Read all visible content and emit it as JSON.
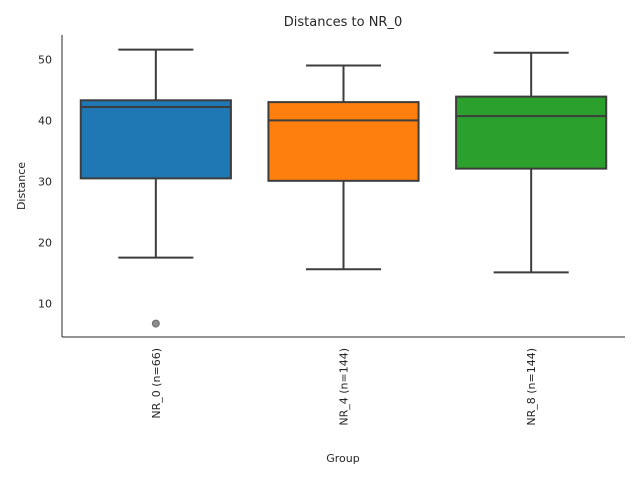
{
  "chart_data": {
    "type": "box",
    "title": "Distances to NR_0",
    "xlabel": "Group",
    "ylabel": "Distance",
    "ylim": [
      4.5,
      54
    ],
    "yticks": [
      10,
      20,
      30,
      40,
      50
    ],
    "grid": false,
    "categories": [
      "NR_0 (n=66)",
      "NR_4 (n=144)",
      "NR_8 (n=144)"
    ],
    "boxes": [
      {
        "name": "NR_0 (n=66)",
        "color": "#1f77b4",
        "whisker_low": 17.5,
        "q1": 30.5,
        "median": 42.2,
        "q3": 43.3,
        "whisker_high": 51.6,
        "outliers": [
          6.7
        ]
      },
      {
        "name": "NR_4 (n=144)",
        "color": "#ff7f0e",
        "whisker_low": 15.6,
        "q1": 30.1,
        "median": 40.0,
        "q3": 43.0,
        "whisker_high": 49.0,
        "outliers": []
      },
      {
        "name": "NR_8 (n=144)",
        "color": "#2ca02c",
        "whisker_low": 15.1,
        "q1": 32.1,
        "median": 40.7,
        "q3": 43.9,
        "whisker_high": 51.1,
        "outliers": []
      }
    ]
  }
}
